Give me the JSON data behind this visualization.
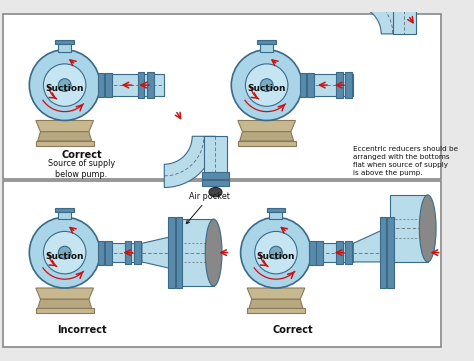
{
  "bg_color": "#e8e8e8",
  "panel_bg": "#ffffff",
  "pump_body_color": "#aad4e8",
  "pump_outline": "#3a6a8a",
  "pump_inner_color": "#c5e5f2",
  "pump_center_color": "#7aacc0",
  "pipe_color": "#b8dcea",
  "pipe_outline": "#3a6a8a",
  "flange_color": "#5a8aaa",
  "base_color": "#c8b890",
  "base_outline": "#8a7a5a",
  "base_foot_color": "#b8a880",
  "arrow_color": "#cc1111",
  "valve_color": "#444444",
  "top_left_label1": "Correct",
  "top_left_label2": "Source of supply\nbelow pump.",
  "top_right_label1": "Eccentric reducers should be\narranged with the bottoms\nflat when source of supply\nis above the pump.",
  "bottom_left_label1": "Incorrect",
  "bottom_right_label1": "Correct",
  "air_pocket_label": "Air pocket",
  "suction_label": "Suction"
}
